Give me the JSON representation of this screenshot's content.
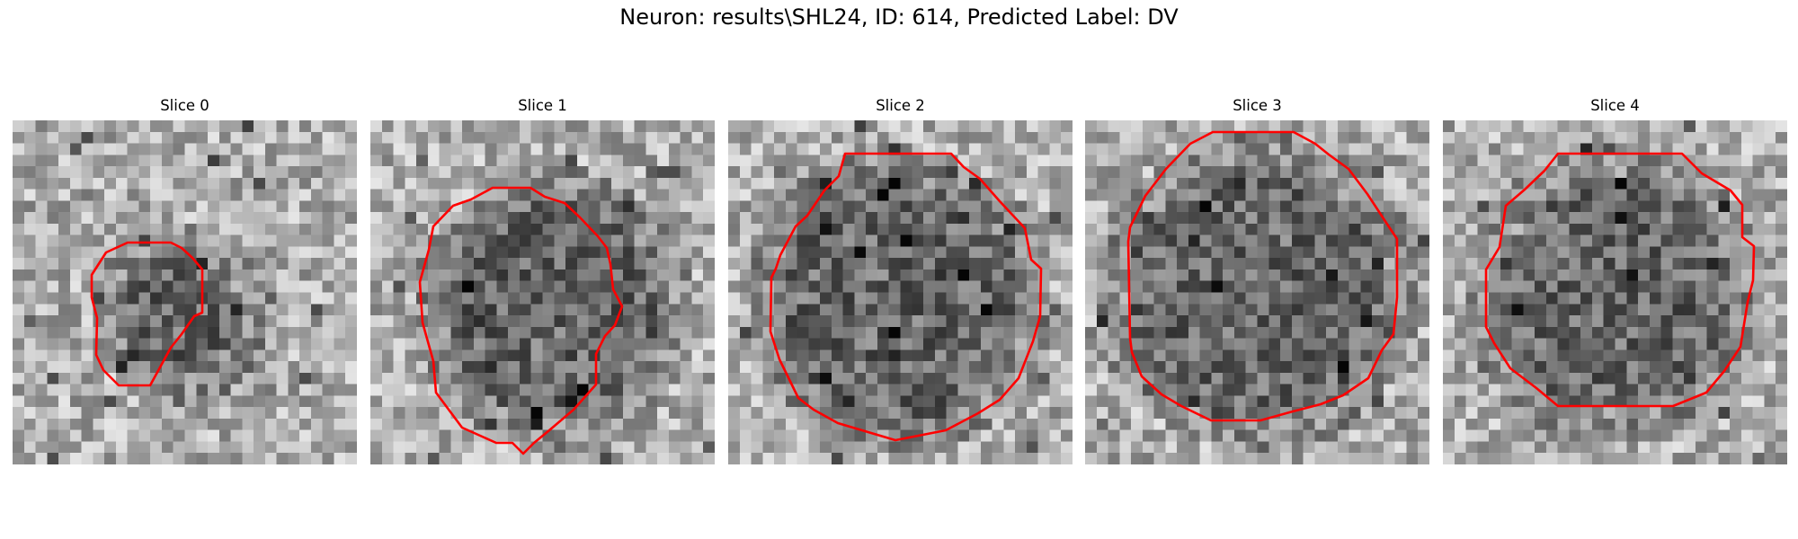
{
  "figure": {
    "title": "Neuron: results\\SHL24, ID: 614, Predicted Label: DV"
  },
  "contour_color": "#ff0000",
  "colormap": "gray",
  "panels": [
    {
      "title": "Slice 0"
    },
    {
      "title": "Slice 1"
    },
    {
      "title": "Slice 2"
    },
    {
      "title": "Slice 3"
    },
    {
      "title": "Slice 4"
    }
  ]
}
